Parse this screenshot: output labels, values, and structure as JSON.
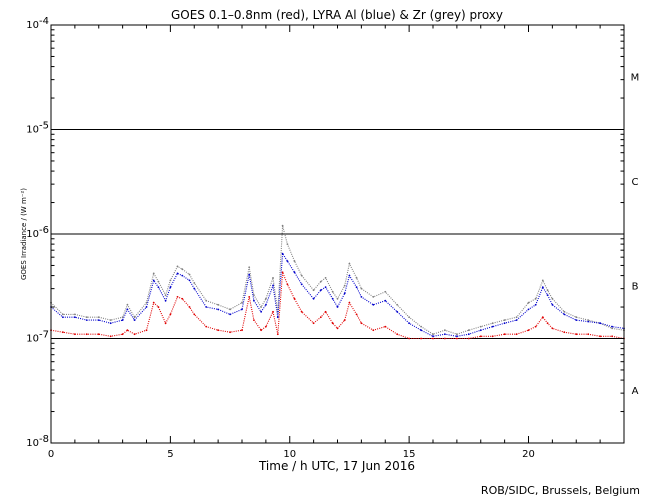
{
  "chart_data": {
    "type": "scatter",
    "title": "GOES 0.1–0.8nm (red), LYRA Al (blue) & Zr (grey) proxy",
    "xlabel": "Time / h UTC, 17 Jun 2016",
    "ylabel": "GOES Irradiance / (W m⁻²)",
    "xlim": [
      0,
      24
    ],
    "ylim": [
      1e-08,
      0.0001
    ],
    "yscale": "log",
    "x_ticks": [
      0,
      5,
      10,
      15,
      20
    ],
    "y_ticks": [
      {
        "value": 1e-08,
        "base": "10",
        "exp": "-8"
      },
      {
        "value": 1e-07,
        "base": "10",
        "exp": "-7"
      },
      {
        "value": 1e-06,
        "base": "10",
        "exp": "-6"
      },
      {
        "value": 1e-05,
        "base": "10",
        "exp": "-5"
      },
      {
        "value": 0.0001,
        "base": "10",
        "exp": "-4"
      }
    ],
    "class_lines": [
      1e-07,
      1e-06,
      1e-05
    ],
    "flare_classes": [
      {
        "label": "A",
        "value": 3.2e-08
      },
      {
        "label": "B",
        "value": 3.2e-07
      },
      {
        "label": "C",
        "value": 3.2e-06
      },
      {
        "label": "M",
        "value": 3.2e-05
      }
    ],
    "series": [
      {
        "color": "#808080",
        "x": [
          0,
          0.5,
          1,
          1.5,
          2,
          2.5,
          3,
          3.2,
          3.5,
          4,
          4.3,
          4.5,
          4.8,
          5,
          5.3,
          5.5,
          5.8,
          6,
          6.5,
          7,
          7.5,
          8,
          8.3,
          8.5,
          8.8,
          9,
          9.3,
          9.5,
          9.7,
          9.9,
          10.2,
          10.5,
          11,
          11.3,
          11.5,
          11.8,
          12,
          12.3,
          12.5,
          12.8,
          13,
          13.5,
          14,
          14.5,
          15,
          15.5,
          16,
          16.5,
          17,
          17.5,
          18,
          18.5,
          19,
          19.5,
          20,
          20.3,
          20.6,
          20.8,
          21,
          21.5,
          22,
          22.5,
          23,
          23.5,
          24
        ],
        "y": [
          2.2e-07,
          1.7e-07,
          1.7e-07,
          1.6e-07,
          1.6e-07,
          1.5e-07,
          1.6e-07,
          2.1e-07,
          1.6e-07,
          2.2e-07,
          4.2e-07,
          3.5e-07,
          2.6e-07,
          3.6e-07,
          4.9e-07,
          4.6e-07,
          4.1e-07,
          3.4e-07,
          2.3e-07,
          2.1e-07,
          1.9e-07,
          2.2e-07,
          4.8e-07,
          2.6e-07,
          2e-07,
          2.4e-07,
          3.8e-07,
          1.8e-07,
          1.2e-06,
          8e-07,
          5.5e-07,
          4e-07,
          2.9e-07,
          3.5e-07,
          3.8e-07,
          2.8e-07,
          2.4e-07,
          3.2e-07,
          5.2e-07,
          3.8e-07,
          3e-07,
          2.5e-07,
          2.8e-07,
          2.1e-07,
          1.6e-07,
          1.3e-07,
          1.1e-07,
          1.2e-07,
          1.1e-07,
          1.2e-07,
          1.3e-07,
          1.4e-07,
          1.5e-07,
          1.6e-07,
          2.2e-07,
          2.4e-07,
          3.6e-07,
          2.9e-07,
          2.4e-07,
          1.8e-07,
          1.6e-07,
          1.5e-07,
          1.4e-07,
          1.25e-07,
          1.2e-07
        ]
      },
      {
        "color": "#0000cc",
        "x": [
          0,
          0.5,
          1,
          1.5,
          2,
          2.5,
          3,
          3.2,
          3.5,
          4,
          4.3,
          4.5,
          4.8,
          5,
          5.3,
          5.5,
          5.8,
          6,
          6.5,
          7,
          7.5,
          8,
          8.3,
          8.5,
          8.8,
          9,
          9.3,
          9.5,
          9.7,
          9.9,
          10.2,
          10.5,
          11,
          11.3,
          11.5,
          11.8,
          12,
          12.3,
          12.5,
          12.8,
          13,
          13.5,
          14,
          14.5,
          15,
          15.5,
          16,
          16.5,
          17,
          17.5,
          18,
          18.5,
          19,
          19.5,
          20,
          20.3,
          20.6,
          20.8,
          21,
          21.5,
          22,
          22.5,
          23,
          23.5,
          24
        ],
        "y": [
          2e-07,
          1.6e-07,
          1.6e-07,
          1.5e-07,
          1.5e-07,
          1.4e-07,
          1.5e-07,
          1.9e-07,
          1.5e-07,
          2e-07,
          3.6e-07,
          3.1e-07,
          2.3e-07,
          3.1e-07,
          4.2e-07,
          4e-07,
          3.6e-07,
          3e-07,
          2e-07,
          1.9e-07,
          1.7e-07,
          1.9e-07,
          4.1e-07,
          2.3e-07,
          1.8e-07,
          2.1e-07,
          3.2e-07,
          1.6e-07,
          6.5e-07,
          5.5e-07,
          4.3e-07,
          3.3e-07,
          2.4e-07,
          2.9e-07,
          3.1e-07,
          2.4e-07,
          2e-07,
          2.7e-07,
          4e-07,
          3.1e-07,
          2.5e-07,
          2.1e-07,
          2.3e-07,
          1.8e-07,
          1.4e-07,
          1.2e-07,
          1.05e-07,
          1.1e-07,
          1.05e-07,
          1.1e-07,
          1.2e-07,
          1.3e-07,
          1.4e-07,
          1.5e-07,
          1.9e-07,
          2.1e-07,
          3.1e-07,
          2.6e-07,
          2.1e-07,
          1.7e-07,
          1.5e-07,
          1.45e-07,
          1.4e-07,
          1.3e-07,
          1.25e-07
        ]
      },
      {
        "color": "#e00000",
        "x": [
          0,
          0.5,
          1,
          1.5,
          2,
          2.5,
          3,
          3.2,
          3.5,
          4,
          4.3,
          4.5,
          4.8,
          5,
          5.3,
          5.5,
          5.8,
          6,
          6.5,
          7,
          7.5,
          8,
          8.3,
          8.5,
          8.8,
          9,
          9.3,
          9.5,
          9.7,
          9.9,
          10.2,
          10.5,
          11,
          11.3,
          11.5,
          11.8,
          12,
          12.3,
          12.5,
          12.8,
          13,
          13.5,
          14,
          14.5,
          15,
          15.5,
          16,
          16.5,
          17,
          17.5,
          18,
          18.5,
          19,
          19.5,
          20,
          20.3,
          20.6,
          20.8,
          21,
          21.5,
          22,
          22.5,
          23,
          23.5,
          24
        ],
        "y": [
          1.2e-07,
          1.15e-07,
          1.1e-07,
          1.1e-07,
          1.1e-07,
          1.05e-07,
          1.1e-07,
          1.2e-07,
          1.1e-07,
          1.2e-07,
          2.2e-07,
          2e-07,
          1.4e-07,
          1.7e-07,
          2.5e-07,
          2.4e-07,
          2e-07,
          1.7e-07,
          1.3e-07,
          1.2e-07,
          1.15e-07,
          1.2e-07,
          2.5e-07,
          1.5e-07,
          1.2e-07,
          1.3e-07,
          1.8e-07,
          1.1e-07,
          4.3e-07,
          3.3e-07,
          2.4e-07,
          1.8e-07,
          1.4e-07,
          1.6e-07,
          1.8e-07,
          1.4e-07,
          1.25e-07,
          1.5e-07,
          2.2e-07,
          1.7e-07,
          1.4e-07,
          1.2e-07,
          1.3e-07,
          1.1e-07,
          1e-07,
          1e-07,
          1e-07,
          1e-07,
          1e-07,
          1e-07,
          1.05e-07,
          1.05e-07,
          1.1e-07,
          1.1e-07,
          1.2e-07,
          1.3e-07,
          1.6e-07,
          1.4e-07,
          1.25e-07,
          1.15e-07,
          1.1e-07,
          1.1e-07,
          1.05e-07,
          1.05e-07,
          1e-07
        ]
      }
    ]
  },
  "credit": "ROB/SIDC, Brussels, Belgium"
}
